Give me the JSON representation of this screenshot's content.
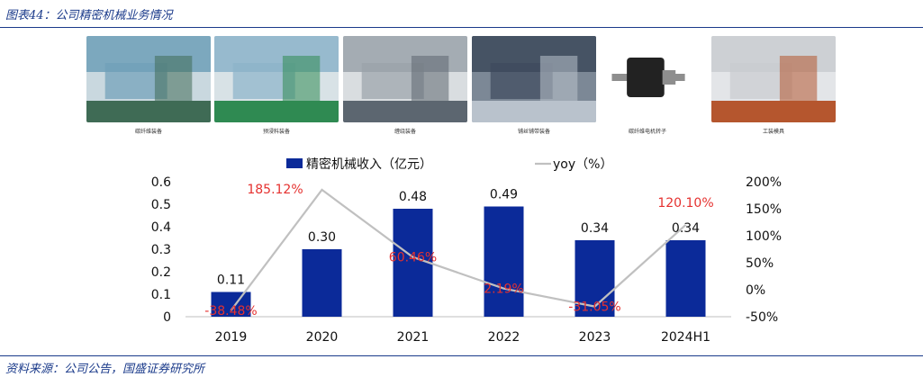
{
  "header": {
    "figure_title": "图表44：公司精密机械业务情况"
  },
  "footer": {
    "source": "资料来源：公司公告，国盛证券研究所"
  },
  "photos": [
    {
      "caption": "碳纤维装备",
      "palette": [
        "#6fa0b8",
        "#3f6b55",
        "#c9d8df"
      ]
    },
    {
      "caption": "预浸料装备",
      "palette": [
        "#8cb3c9",
        "#2f8a52",
        "#d8e2e6"
      ]
    },
    {
      "caption": "缠绕装备",
      "palette": [
        "#9aa3aa",
        "#5c6670",
        "#d9dde0"
      ]
    },
    {
      "caption": "铺丝铺带装备",
      "palette": [
        "#3d4a5c",
        "#b9c2cc",
        "#7c8896"
      ]
    },
    {
      "caption": "碳纤维电机转子",
      "palette": [
        "#ffffff",
        "#222222",
        "#8e8e8e"
      ]
    },
    {
      "caption": "工装模具",
      "palette": [
        "#c9ccd0",
        "#b5562e",
        "#e3e5e8"
      ]
    }
  ],
  "chart_data": {
    "type": "bar+line",
    "categories": [
      "2019",
      "2020",
      "2021",
      "2022",
      "2023",
      "2024H1"
    ],
    "series": [
      {
        "name": "精密机械收入（亿元）",
        "type": "bar",
        "axis": "left",
        "values": [
          0.11,
          0.3,
          0.48,
          0.49,
          0.34,
          0.34
        ],
        "labels": [
          "0.11",
          "0.30",
          "0.48",
          "0.49",
          "0.34",
          "0.34"
        ],
        "color": "#0b2a99"
      },
      {
        "name": "yoy（%）",
        "type": "line",
        "axis": "right",
        "values": [
          -38.48,
          185.12,
          60.46,
          2.19,
          -31.05,
          120.1
        ],
        "labels": [
          "-38.48%",
          "185.12%",
          "60.46%",
          "2.19%",
          "-31.05%",
          "120.10%"
        ],
        "color": "#c0c0c0",
        "label_color": "#e5312f"
      }
    ],
    "y_left": {
      "ylim": [
        0,
        0.6
      ],
      "ticks": [
        "0",
        "0.1",
        "0.2",
        "0.3",
        "0.4",
        "0.5",
        "0.6"
      ]
    },
    "y_right": {
      "ylim": [
        -50,
        200
      ],
      "ticks": [
        "-50%",
        "0%",
        "50%",
        "100%",
        "150%",
        "200%"
      ]
    },
    "legend_position": "top",
    "grid": false
  }
}
